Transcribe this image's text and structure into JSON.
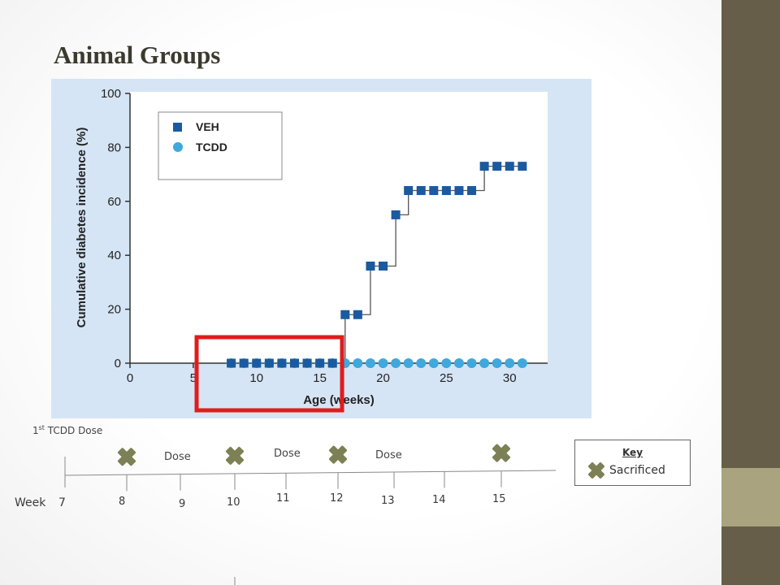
{
  "slide": {
    "title": "Animal Groups",
    "colors": {
      "side_strip": "#675e49",
      "side_accent": "#a9a37f",
      "highlight": "#e21b1b",
      "x_marker": "#7d8055"
    }
  },
  "chart_data": {
    "type": "scatter",
    "title": "",
    "xlabel": "Age (weeks)",
    "ylabel": "Cumulative diabetes incidence (%)",
    "xlim": [
      0,
      33
    ],
    "ylim": [
      0,
      100
    ],
    "xticks": [
      0,
      5,
      10,
      15,
      20,
      25,
      30
    ],
    "yticks": [
      0,
      20,
      40,
      60,
      80,
      100
    ],
    "grid": false,
    "legend_position": "top-left",
    "series": [
      {
        "name": "VEH",
        "marker": "square",
        "color": "#1a5aa0",
        "x": [
          8,
          9,
          10,
          11,
          12,
          13,
          14,
          15,
          16,
          17,
          18,
          19,
          20,
          21,
          22,
          23,
          24,
          25,
          26,
          27,
          28,
          29,
          30,
          31
        ],
        "y": [
          0,
          0,
          0,
          0,
          0,
          0,
          0,
          0,
          0,
          18,
          18,
          36,
          36,
          55,
          64,
          64,
          64,
          64,
          64,
          64,
          73,
          73,
          73,
          73
        ]
      },
      {
        "name": "TCDD",
        "marker": "circle",
        "color": "#3fa8dc",
        "x": [
          8,
          9,
          10,
          11,
          12,
          13,
          14,
          15,
          16,
          17,
          18,
          19,
          20,
          21,
          22,
          23,
          24,
          25,
          26,
          27,
          28,
          29,
          30,
          31
        ],
        "y": [
          0,
          0,
          0,
          0,
          0,
          0,
          0,
          0,
          0,
          0,
          0,
          0,
          0,
          0,
          0,
          0,
          0,
          0,
          0,
          0,
          0,
          0,
          0,
          0
        ]
      }
    ],
    "highlight_range": [
      7.5,
      17
    ]
  },
  "timeline": {
    "first_dose_label": "1st TCDD Dose",
    "first_dose_base": "1",
    "first_dose_sup": "st",
    "first_dose_rest": " TCDD Dose",
    "dose_labels": [
      "Dose",
      "Dose",
      "Dose"
    ],
    "week_prefix": "Week",
    "weeks": [
      "7",
      "8",
      "9",
      "10",
      "11",
      "12",
      "13",
      "14",
      "15"
    ],
    "sacrificed_weeks": [
      "8",
      "10",
      "12",
      "15"
    ]
  },
  "key": {
    "title": "Key",
    "sacrificed_label": "Sacrificed",
    "icon": "x-marker-icon"
  }
}
